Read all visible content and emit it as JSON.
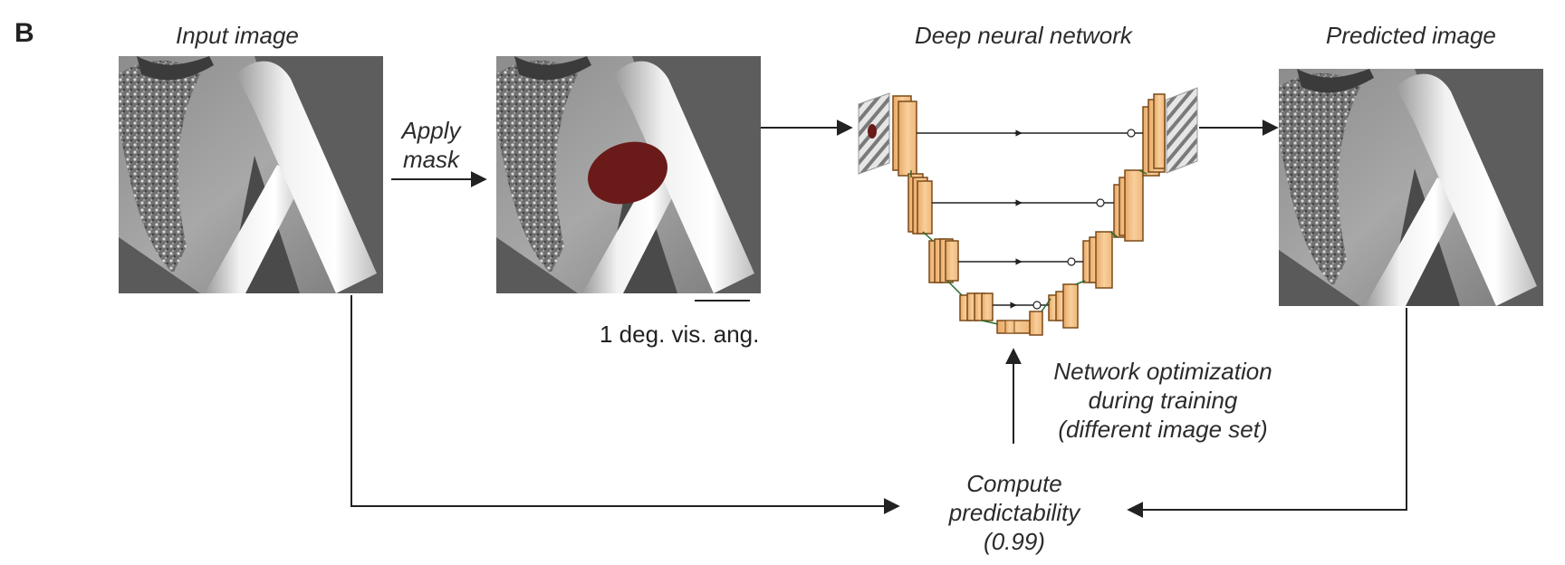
{
  "panel_label": "B",
  "labels": {
    "input_image": "Input image",
    "apply_mask": [
      "Apply",
      "mask"
    ],
    "scale_bar": "1 deg. vis. ang.",
    "network": "Deep neural network",
    "predicted_image": "Predicted image",
    "optimization": [
      "Network optimization",
      "during training",
      "(different image set)"
    ],
    "compute": [
      "Compute",
      "predictability",
      "(0.99)"
    ]
  },
  "colors": {
    "mask": "#6b1a1a",
    "block_fill": "#f6c48c",
    "block_edge": "#7a4a18",
    "arrow": "#222222"
  }
}
